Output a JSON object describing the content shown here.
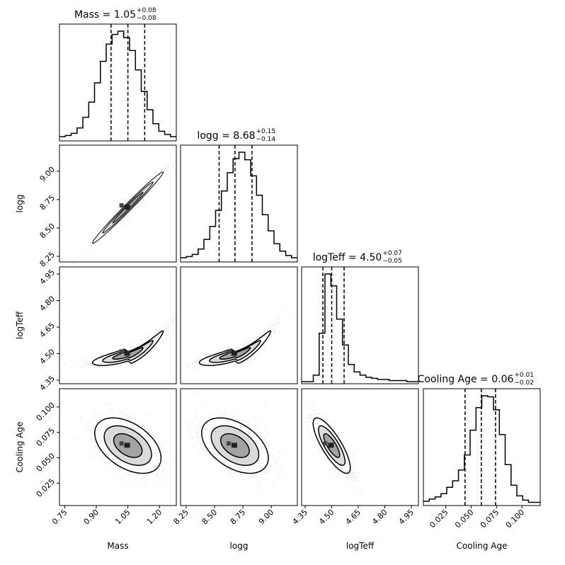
{
  "chart_data": {
    "type": "corner",
    "params": [
      "Mass",
      "logg",
      "logTeff",
      "Cooling Age"
    ],
    "titles": [
      {
        "name": "Mass",
        "median": "1.05",
        "plus": "+0.08",
        "minus": "−0.08"
      },
      {
        "name": "logg",
        "median": "8.68",
        "plus": "+0.15",
        "minus": "−0.14"
      },
      {
        "name": "logTeff",
        "median": "4.50",
        "plus": "+0.07",
        "minus": "−0.05"
      },
      {
        "name": "Cooling Age ",
        "median": "0.06",
        "plus": "+0.01",
        "minus": "−0.02"
      }
    ],
    "ranges": [
      [
        0.725,
        1.28
      ],
      [
        8.2,
        9.23
      ],
      [
        4.33,
        4.99
      ],
      [
        0.003,
        0.118
      ]
    ],
    "ticks": [
      [
        "0.75",
        "0.90",
        "1.05",
        "1.20"
      ],
      [
        "8.25",
        "8.50",
        "8.75",
        "9.00"
      ],
      [
        "4.35",
        "4.50",
        "4.65",
        "4.80",
        "4.95"
      ],
      [
        "0.025",
        "0.050",
        "0.075",
        "0.100"
      ]
    ],
    "quantiles": [
      [
        0.97,
        1.05,
        1.13
      ],
      [
        8.54,
        8.68,
        8.83
      ],
      [
        4.45,
        4.5,
        4.57
      ],
      [
        0.044,
        0.06,
        0.074
      ]
    ],
    "histograms": [
      [
        0.02,
        0.03,
        0.05,
        0.1,
        0.2,
        0.34,
        0.52,
        0.72,
        0.88,
        0.97,
        1.0,
        0.94,
        0.82,
        0.64,
        0.44,
        0.27,
        0.14,
        0.07,
        0.04,
        0.02
      ],
      [
        0.02,
        0.03,
        0.05,
        0.1,
        0.19,
        0.31,
        0.46,
        0.64,
        0.81,
        0.94,
        1.0,
        0.93,
        0.78,
        0.6,
        0.42,
        0.27,
        0.15,
        0.08,
        0.04,
        0.02
      ],
      [
        0.0,
        0.0,
        0.06,
        0.45,
        1.0,
        0.89,
        0.58,
        0.34,
        0.16,
        0.09,
        0.06,
        0.04,
        0.03,
        0.02,
        0.02,
        0.01,
        0.01,
        0.01,
        0.0,
        0.0
      ],
      [
        0.02,
        0.04,
        0.06,
        0.09,
        0.15,
        0.21,
        0.31,
        0.45,
        0.68,
        0.89,
        1.0,
        0.99,
        0.87,
        0.64,
        0.36,
        0.17,
        0.07,
        0.03,
        0.01,
        0.01
      ]
    ],
    "pairs": [
      {
        "row": 1,
        "col": 0,
        "kind": "line",
        "cx": 1.05,
        "cy": 8.68,
        "sx": 0.08,
        "sy": 0.15,
        "rho": 0.99,
        "a": 0.0,
        "b": 1.0
      },
      {
        "row": 2,
        "col": 0,
        "kind": "curve",
        "cx": 1.05,
        "cy": 4.5,
        "sx": 0.08,
        "sy": 0.05,
        "rho": 0.7,
        "a": 1.6,
        "b": 0.6
      },
      {
        "row": 2,
        "col": 1,
        "kind": "curve",
        "cx": 8.68,
        "cy": 4.5,
        "sx": 0.15,
        "sy": 0.05,
        "rho": 0.7,
        "a": 1.6,
        "b": 0.6
      },
      {
        "row": 3,
        "col": 0,
        "kind": "tilted",
        "cx": 1.05,
        "cy": 0.062,
        "sx": 0.075,
        "sy": 0.013,
        "rho": -0.45,
        "a": 0.0,
        "b": 1.0
      },
      {
        "row": 3,
        "col": 1,
        "kind": "tilted",
        "cx": 8.68,
        "cy": 0.062,
        "sx": 0.14,
        "sy": 0.013,
        "rho": -0.45,
        "a": 0.0,
        "b": 1.0
      },
      {
        "row": 3,
        "col": 2,
        "kind": "tilted",
        "cx": 4.5,
        "cy": 0.062,
        "sx": 0.05,
        "sy": 0.013,
        "rho": -0.8,
        "a": 0.0,
        "b": 1.0
      }
    ]
  }
}
